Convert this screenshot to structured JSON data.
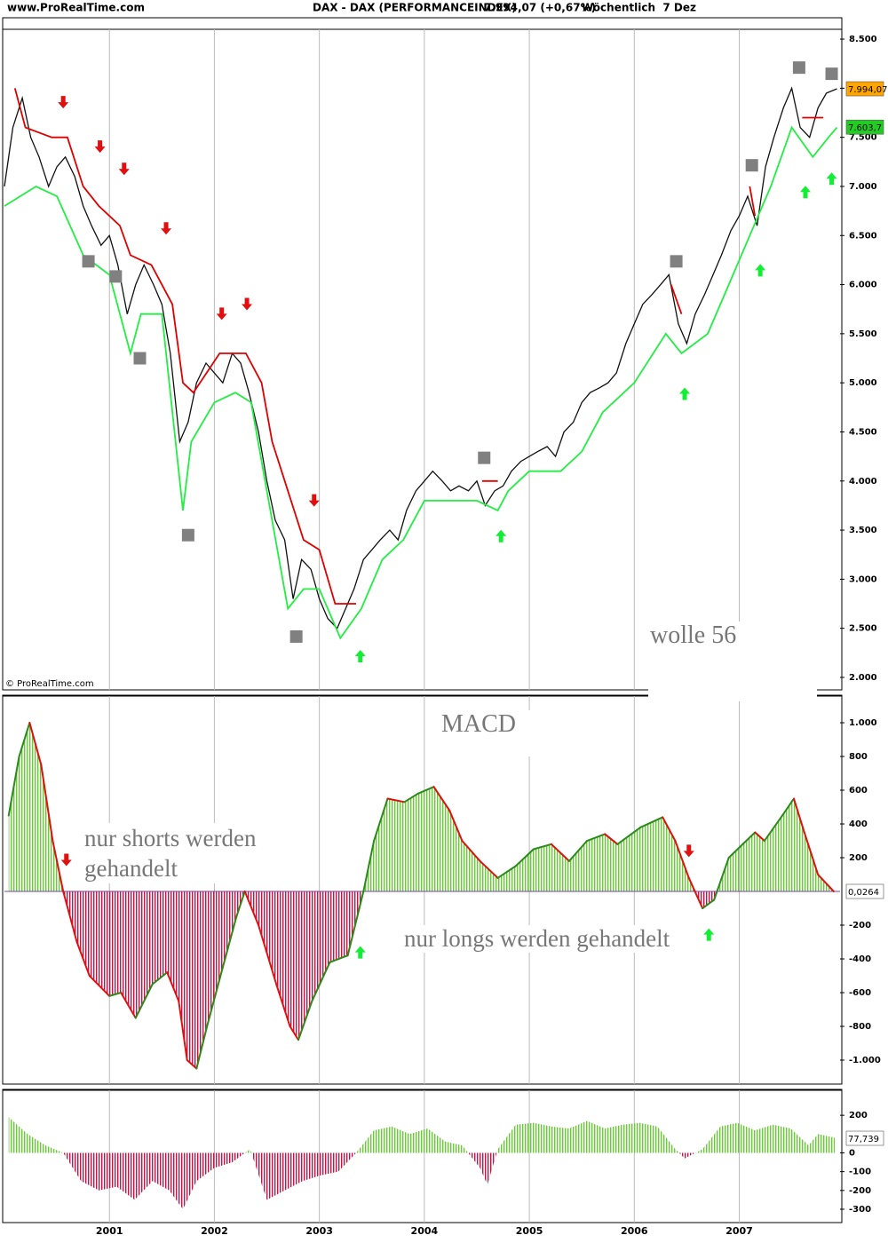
{
  "header": {
    "site": "www.ProRealTime.com",
    "title": "DAX - DAX (PERFORMANCEINDEX)",
    "quote": "7.994,07 (+0,67%)",
    "period": "Wöchentlich  7 Dez"
  },
  "chart_data": [
    {
      "type": "line",
      "copyright": "© ProRealTime.com",
      "note": "wolle 56",
      "xlim": [
        2000.0,
        2007.96
      ],
      "xticks": [
        2001,
        2002,
        2003,
        2004,
        2005,
        2006,
        2007
      ],
      "ylim": [
        1873,
        8600
      ],
      "yticks": [
        {
          "value": 2000,
          "label": "2.000"
        },
        {
          "value": 2500,
          "label": "2.500"
        },
        {
          "value": 3000,
          "label": "3.000"
        },
        {
          "value": 3500,
          "label": "3.500"
        },
        {
          "value": 4000,
          "label": "4.000"
        },
        {
          "value": 4500,
          "label": "4.500"
        },
        {
          "value": 5000,
          "label": "5.000"
        },
        {
          "value": 5500,
          "label": "5.500"
        },
        {
          "value": 6000,
          "label": "6.000"
        },
        {
          "value": 6500,
          "label": "6.500"
        },
        {
          "value": 7000,
          "label": "7.000"
        },
        {
          "value": 7500,
          "label": "7.500"
        },
        {
          "value": 8000,
          "label": "8.000"
        },
        {
          "value": 8500,
          "label": "8.500"
        }
      ],
      "series": [
        {
          "color": "#111111",
          "x": [
            2000.0,
            2000.08,
            2000.17,
            2000.25,
            2000.33,
            2000.42,
            2000.5,
            2000.58,
            2000.67,
            2000.75,
            2000.83,
            2000.92,
            2001.0,
            2001.08,
            2001.17,
            2001.25,
            2001.33,
            2001.42,
            2001.5,
            2001.58,
            2001.67,
            2001.75,
            2001.83,
            2001.92,
            2002.0,
            2002.08,
            2002.17,
            2002.25,
            2002.33,
            2002.42,
            2002.5,
            2002.58,
            2002.67,
            2002.75,
            2002.83,
            2002.92,
            2003.0,
            2003.08,
            2003.17,
            2003.25,
            2003.33,
            2003.42,
            2003.5,
            2003.58,
            2003.67,
            2003.75,
            2003.83,
            2003.92,
            2004.0,
            2004.08,
            2004.17,
            2004.25,
            2004.33,
            2004.42,
            2004.5,
            2004.58,
            2004.67,
            2004.75,
            2004.83,
            2004.92,
            2005.0,
            2005.08,
            2005.17,
            2005.25,
            2005.33,
            2005.42,
            2005.5,
            2005.58,
            2005.67,
            2005.75,
            2005.83,
            2005.92,
            2006.0,
            2006.08,
            2006.17,
            2006.25,
            2006.33,
            2006.42,
            2006.5,
            2006.58,
            2006.67,
            2006.75,
            2006.83,
            2006.92,
            2007.0,
            2007.08,
            2007.17,
            2007.25,
            2007.33,
            2007.42,
            2007.5,
            2007.58,
            2007.67,
            2007.75,
            2007.83,
            2007.93
          ],
          "values": [
            7000,
            7600,
            7900,
            7500,
            7300,
            7000,
            7200,
            7300,
            7100,
            6800,
            6600,
            6400,
            6500,
            6200,
            5700,
            6000,
            6200,
            6000,
            5800,
            5300,
            4400,
            4600,
            5000,
            5200,
            5100,
            5000,
            5300,
            5200,
            4900,
            4500,
            4000,
            3600,
            3400,
            2800,
            3200,
            3100,
            2800,
            2600,
            2500,
            2700,
            2900,
            3200,
            3300,
            3400,
            3500,
            3400,
            3700,
            3900,
            4000,
            4100,
            4000,
            3900,
            3950,
            3900,
            4000,
            3750,
            3900,
            3950,
            4100,
            4200,
            4250,
            4300,
            4350,
            4250,
            4500,
            4600,
            4800,
            4900,
            4950,
            5000,
            5100,
            5400,
            5600,
            5800,
            5900,
            6000,
            6100,
            5600,
            5400,
            5700,
            5900,
            6100,
            6300,
            6550,
            6700,
            6900,
            6600,
            7200,
            7500,
            7800,
            8000,
            7600,
            7500,
            7800,
            7950,
            7994
          ]
        },
        {
          "color": "#e00000",
          "x": [
            2000.1,
            2000.2,
            2000.45,
            2000.6,
            2000.75,
            2000.9,
            2001.1,
            2001.2,
            2001.4,
            2001.6,
            2001.7,
            2001.8,
            2002.05,
            2002.3,
            2002.45,
            2002.55,
            2002.7,
            2002.85,
            2003.0,
            2003.15,
            2003.35,
            2003.4,
            2004.55,
            2004.7,
            2004.75,
            2006.35,
            2006.45,
            2006.5,
            2007.1,
            2007.15,
            2007.2,
            2007.6,
            2007.8
          ],
          "values": [
            8000,
            7600,
            7500,
            7500,
            7000,
            6800,
            6600,
            6300,
            6200,
            5800,
            5000,
            4900,
            5300,
            5300,
            5000,
            4400,
            3900,
            3400,
            3300,
            2750,
            2750,
            null,
            4000,
            4000,
            null,
            6000,
            5700,
            null,
            7000,
            6700,
            null,
            7700,
            7700
          ]
        },
        {
          "color": "#22ee44",
          "x": [
            2000.0,
            2000.3,
            2000.5,
            2000.75,
            2001.0,
            2001.2,
            2001.3,
            2001.5,
            2001.7,
            2001.78,
            2002.0,
            2002.2,
            2002.35,
            2002.5,
            2002.7,
            2002.85,
            2003.0,
            2003.2,
            2003.4,
            2003.6,
            2003.8,
            2004.0,
            2004.5,
            2004.7,
            2004.8,
            2005.0,
            2005.3,
            2005.5,
            2005.7,
            2006.0,
            2006.3,
            2006.45,
            2006.7,
            2006.9,
            2007.1,
            2007.3,
            2007.5,
            2007.7,
            2007.85,
            2007.93
          ],
          "values": [
            6800,
            7000,
            6900,
            6300,
            6100,
            5300,
            5700,
            5700,
            3700,
            4400,
            4800,
            4900,
            4800,
            3900,
            2700,
            2900,
            2900,
            2400,
            2700,
            3200,
            3400,
            3800,
            3800,
            3700,
            3900,
            4100,
            4100,
            4300,
            4700,
            5000,
            5500,
            5300,
            5500,
            6000,
            6500,
            7000,
            7600,
            7300,
            7500,
            7600
          ]
        }
      ],
      "signals": [
        {
          "shape": "down-arrow",
          "color": "#e01010",
          "x": [
            2000.56,
            2000.91,
            2001.14,
            2001.54,
            2002.07,
            2002.31,
            2002.95
          ],
          "y": [
            7857,
            7405,
            7178,
            6572,
            5703,
            5802,
            3802
          ]
        },
        {
          "shape": "up-arrow",
          "color": "#11ee33",
          "x": [
            2003.39,
            2004.73,
            2006.48,
            2007.2,
            2007.63,
            2007.88
          ],
          "y": [
            2217,
            3439,
            4888,
            6146,
            6943,
            7079
          ]
        },
        {
          "shape": "square",
          "color": "#808080",
          "x": [
            2000.8,
            2001.06,
            2001.29,
            2001.75,
            2002.78,
            2004.57,
            2006.4,
            2007.12,
            2007.57,
            2007.88
          ],
          "y": [
            6237,
            6083,
            5250,
            3449,
            2416,
            4236,
            6237,
            7215,
            8210,
            8147
          ]
        }
      ],
      "value_labels": [
        {
          "value": 7994.07,
          "label": "7.994,07",
          "color": "#ffa500"
        },
        {
          "value": 7603.7,
          "label": "7.603,7",
          "color": "#22cc22"
        }
      ]
    },
    {
      "type": "macd",
      "title": "MACD",
      "notes": [
        "nur shorts werden gehandelt",
        "nur longs werden gehandelt"
      ],
      "xlim": [
        2000.0,
        2007.96
      ],
      "xticks": [
        2001,
        2002,
        2003,
        2004,
        2005,
        2006,
        2007
      ],
      "ylim": [
        -1142,
        1158
      ],
      "yticks": [
        {
          "value": -1000,
          "label": "-1.000"
        },
        -800,
        -600,
        -400,
        -200,
        200,
        400,
        600,
        800,
        {
          "value": 1000,
          "label": "1.000"
        }
      ],
      "colors": {
        "positive": "#66cc33",
        "negative": "#cc1144",
        "rising": "#2a8a1a",
        "falling": "#e01010",
        "zero": "#7a3fb0"
      },
      "x": [
        2000.04,
        2000.14,
        2000.24,
        2000.35,
        2000.46,
        2000.56,
        2000.69,
        2000.81,
        2001.0,
        2001.11,
        2001.25,
        2001.41,
        2001.55,
        2001.66,
        2001.74,
        2001.83,
        2001.93,
        2002.08,
        2002.21,
        2002.29,
        2002.42,
        2002.59,
        2002.72,
        2002.8,
        2002.93,
        2003.1,
        2003.27,
        2003.42,
        2003.52,
        2003.65,
        2003.81,
        2003.94,
        2004.09,
        2004.24,
        2004.36,
        2004.53,
        2004.7,
        2004.87,
        2005.04,
        2005.21,
        2005.38,
        2005.55,
        2005.72,
        2005.84,
        2006.06,
        2006.27,
        2006.39,
        2006.52,
        2006.65,
        2006.76,
        2006.9,
        2007.15,
        2007.24,
        2007.41,
        2007.52,
        2007.62,
        2007.75,
        2007.9
      ],
      "values": [
        450,
        800,
        1000,
        750,
        300,
        0,
        -300,
        -500,
        -620,
        -600,
        -750,
        -550,
        -480,
        -650,
        -1000,
        -1050,
        -800,
        -450,
        -150,
        0,
        -200,
        -550,
        -800,
        -880,
        -650,
        -420,
        -380,
        0,
        300,
        550,
        530,
        580,
        620,
        480,
        300,
        180,
        80,
        150,
        250,
        280,
        180,
        300,
        340,
        280,
        380,
        440,
        300,
        80,
        -100,
        -50,
        200,
        350,
        300,
        450,
        550,
        350,
        100,
        0
      ],
      "signals": [
        {
          "shape": "down-arrow",
          "color": "#e01010",
          "x": [
            2000.59,
            2006.52
          ],
          "y": [
            187,
            240
          ]
        },
        {
          "shape": "up-arrow",
          "color": "#11ee33",
          "x": [
            2003.39,
            2006.71
          ],
          "y": [
            -361,
            -256
          ]
        }
      ],
      "value_labels": [
        {
          "value": 0.0264,
          "label": "0,0264",
          "color": "#ffffff"
        }
      ]
    },
    {
      "type": "histogram",
      "xlim": [
        2000.0,
        2007.96
      ],
      "xticks": [
        2001,
        2002,
        2003,
        2004,
        2005,
        2006,
        2007
      ],
      "ylim": [
        -371,
        333
      ],
      "yticks": [
        -300,
        -200,
        -100,
        0,
        200
      ],
      "colors": {
        "positive": "#66cc33",
        "negative": "#cc1144"
      },
      "x": [
        2000.04,
        2000.22,
        2000.39,
        2000.56,
        2000.73,
        2000.9,
        2001.07,
        2001.24,
        2001.41,
        2001.57,
        2001.7,
        2001.83,
        2002.0,
        2002.17,
        2002.34,
        2002.5,
        2002.67,
        2002.84,
        2003.01,
        2003.18,
        2003.35,
        2003.52,
        2003.69,
        2003.86,
        2004.03,
        2004.2,
        2004.36,
        2004.53,
        2004.6,
        2004.7,
        2004.87,
        2005.04,
        2005.21,
        2005.38,
        2005.55,
        2005.72,
        2005.89,
        2006.05,
        2006.22,
        2006.39,
        2006.48,
        2006.65,
        2006.82,
        2006.98,
        2007.15,
        2007.32,
        2007.49,
        2007.66,
        2007.75,
        2007.91
      ],
      "values": [
        190,
        100,
        40,
        0,
        -150,
        -200,
        -180,
        -250,
        -150,
        -200,
        -300,
        -150,
        -80,
        -50,
        20,
        -250,
        -200,
        -150,
        -120,
        -100,
        0,
        120,
        140,
        100,
        130,
        60,
        40,
        -80,
        -170,
        20,
        150,
        160,
        140,
        130,
        170,
        130,
        150,
        160,
        140,
        20,
        -30,
        20,
        140,
        160,
        120,
        150,
        130,
        40,
        100,
        80
      ],
      "value_labels": [
        {
          "value": 77.739,
          "label": "77,739",
          "color": "#ffffff"
        }
      ]
    }
  ]
}
